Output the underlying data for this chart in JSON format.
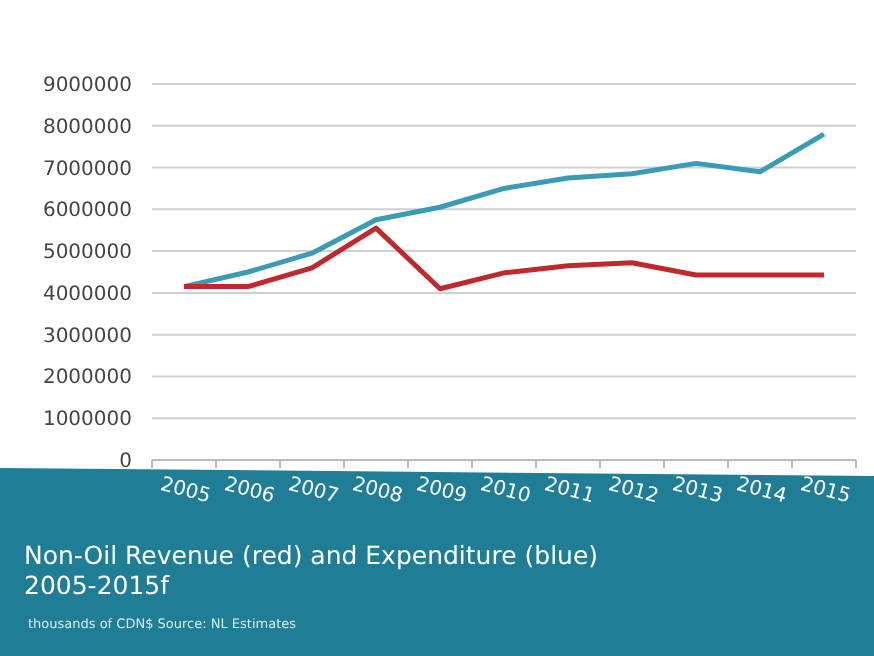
{
  "chart_data": {
    "type": "line",
    "title": "Non-Oil Revenue (red) and Expenditure (blue)\n2005-2015f",
    "annotations": [
      "thousands of CDN$   Source:  NL Estimates"
    ],
    "categories": [
      "2005",
      "2006",
      "2007",
      "2008",
      "2009",
      "2010",
      "2011",
      "2012",
      "2013",
      "2014",
      "2015"
    ],
    "series": [
      {
        "color": "#3a9bb5",
        "values": [
          4150000,
          4500000,
          4950000,
          5750000,
          6050000,
          6500000,
          6750000,
          6850000,
          7100000,
          6900000,
          7800000
        ]
      },
      {
        "color": "#c0282d",
        "values": [
          4150000,
          4150000,
          4600000,
          5550000,
          4100000,
          4480000,
          4650000,
          4720000,
          4430000,
          4430000,
          4430000
        ]
      }
    ],
    "ylim": [
      0,
      9000000
    ],
    "yticks": [
      0,
      1000000,
      2000000,
      3000000,
      4000000,
      5000000,
      6000000,
      7000000,
      8000000,
      9000000
    ],
    "grid": "y",
    "marker": "none",
    "line_style": "solid"
  }
}
